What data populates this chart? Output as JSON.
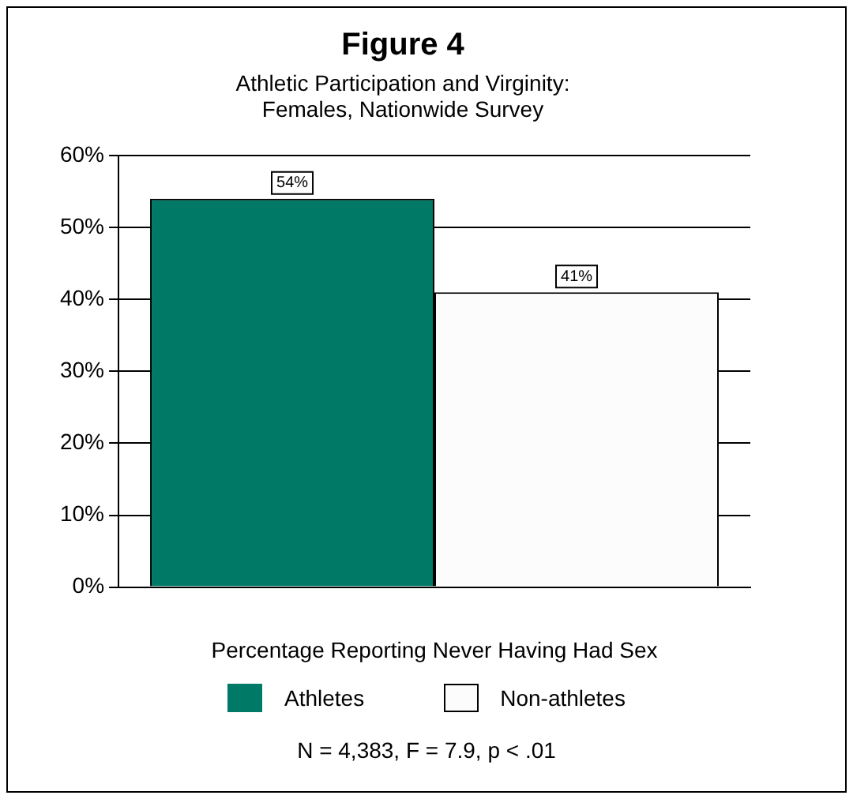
{
  "chart_data": {
    "type": "bar",
    "title": "Figure 4",
    "subtitle": "Athletic Participation and Virginity:\nFemales, Nationwide Survey",
    "xlabel": "Percentage Reporting Never Having Had Sex",
    "categories": [
      null
    ],
    "series": [
      {
        "name": "Athletes",
        "color": "#007a66",
        "values": [
          54
        ],
        "value_labels": [
          "54%"
        ]
      },
      {
        "name": "Non-athletes",
        "color": "#fcfcfc",
        "values": [
          41
        ],
        "value_labels": [
          "41%"
        ]
      }
    ],
    "ylim": [
      0,
      60
    ],
    "yticks": [
      {
        "value": 0,
        "label": "0%"
      },
      {
        "value": 10,
        "label": "10%"
      },
      {
        "value": 20,
        "label": "20%"
      },
      {
        "value": 30,
        "label": "30%"
      },
      {
        "value": 40,
        "label": "40%"
      },
      {
        "value": 50,
        "label": "50%"
      },
      {
        "value": 60,
        "label": "60%"
      }
    ],
    "grid": "y",
    "legend": "bottom",
    "annotations": [
      "N = 4,383,  F = 7.9,  p < .01"
    ]
  }
}
